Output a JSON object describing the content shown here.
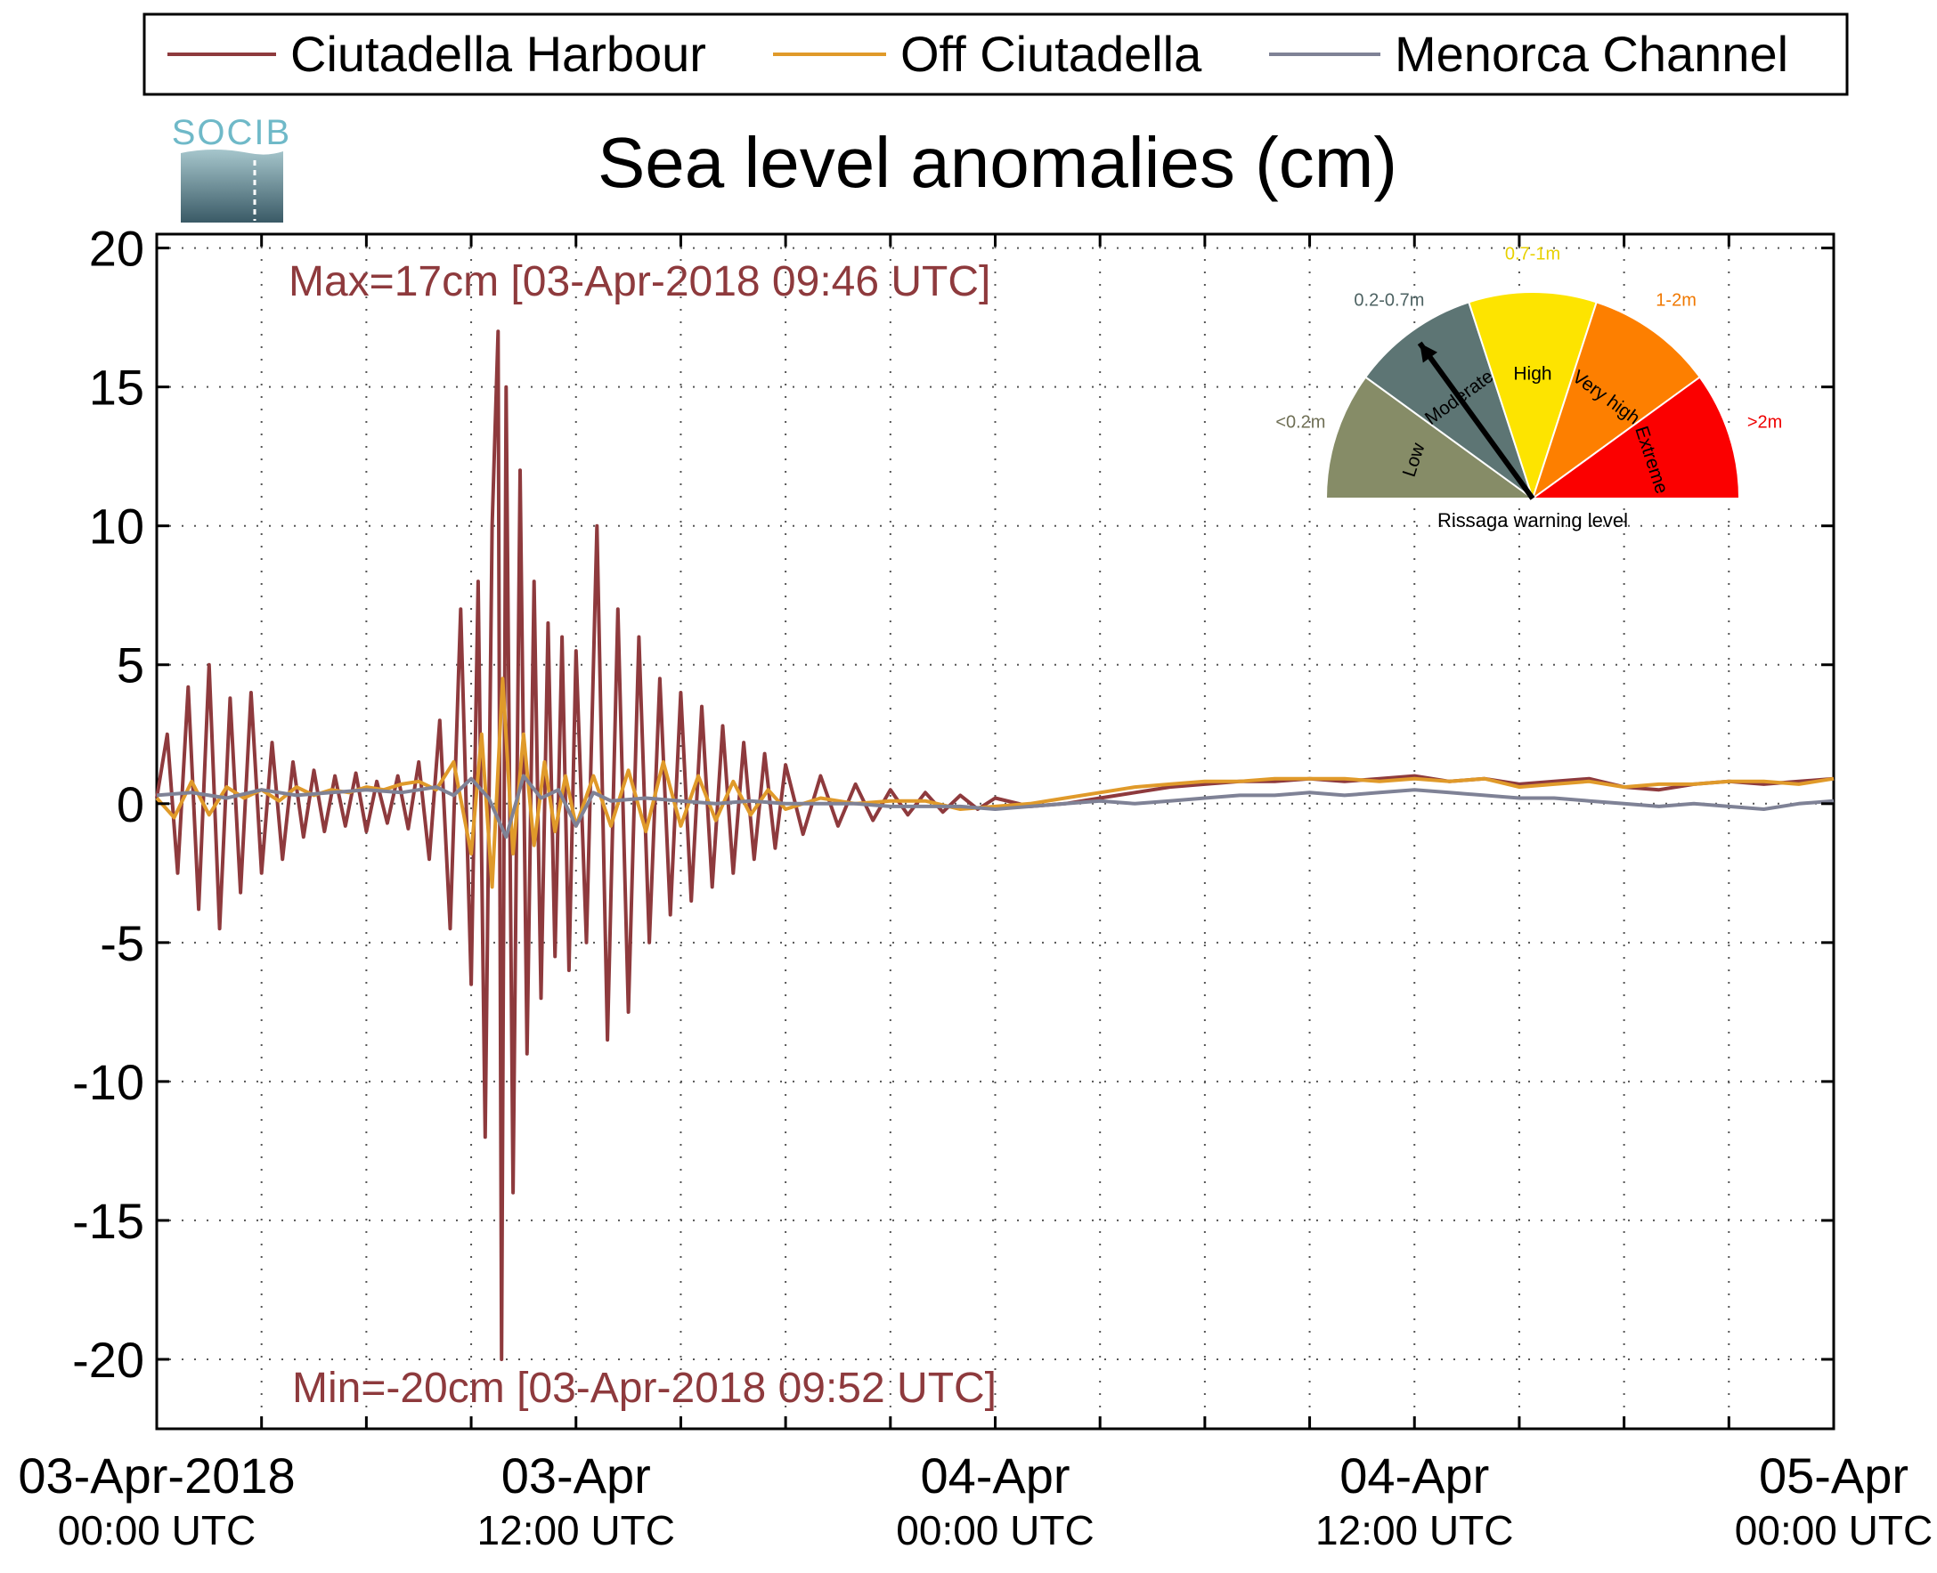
{
  "logo": {
    "text": "SOCIB"
  },
  "legend": {
    "items": [
      {
        "label": "Ciutadella Harbour",
        "color": "#8e3a3d"
      },
      {
        "label": "Off Ciutadella",
        "color": "#e09a2a"
      },
      {
        "label": "Menorca Channel",
        "color": "#7f8296"
      }
    ]
  },
  "gauge": {
    "caption": "Rissaga warning level",
    "sectors": [
      {
        "name": "Low",
        "range": "<0.2m",
        "color": "#868c67",
        "range_color": "#6f6f55"
      },
      {
        "name": "Moderate",
        "range": "0.2-0.7m",
        "color": "#5d7574",
        "range_color": "#4d6262"
      },
      {
        "name": "High",
        "range": "0.7-1m",
        "color": "#fde400",
        "range_color": "#e8d100"
      },
      {
        "name": "Very high",
        "range": "1-2m",
        "color": "#fd7f00",
        "range_color": "#f07800"
      },
      {
        "name": "Extreme",
        "range": ">2m",
        "color": "#fb0000",
        "range_color": "#ee0000"
      }
    ],
    "current_level": "Moderate"
  },
  "chart_data": {
    "type": "line",
    "title": "Sea level anomalies (cm)",
    "xlabel": "",
    "ylabel": "",
    "ylim": [
      -22.5,
      20.5
    ],
    "yticks": [
      20,
      15,
      10,
      5,
      0,
      -5,
      -10,
      -15,
      -20
    ],
    "xlim_hours": [
      0,
      48
    ],
    "x_minor_tick_hours": [
      0,
      3,
      6,
      9,
      12,
      15,
      18,
      21,
      24,
      27,
      30,
      33,
      36,
      39,
      42,
      45,
      48
    ],
    "xtick_labels": [
      {
        "hour": 0,
        "line1": "03-Apr-2018",
        "line2": "00:00 UTC"
      },
      {
        "hour": 12,
        "line1": "03-Apr",
        "line2": "12:00 UTC"
      },
      {
        "hour": 24,
        "line1": "04-Apr",
        "line2": "00:00 UTC"
      },
      {
        "hour": 36,
        "line1": "04-Apr",
        "line2": "12:00 UTC"
      },
      {
        "hour": 48,
        "line1": "05-Apr",
        "line2": "00:00 UTC"
      }
    ],
    "grid": true,
    "legend_position": "top",
    "annotations": {
      "max": {
        "text": "Max=17cm [03-Apr-2018 09:46 UTC]",
        "value": 17,
        "time": "03-Apr-2018 09:46 UTC"
      },
      "min": {
        "text": "Min=-20cm [03-Apr-2018 09:52 UTC]",
        "value": -20,
        "time": "03-Apr-2018 09:52 UTC"
      }
    },
    "series": [
      {
        "name": "Ciutadella Harbour",
        "x_hours": [
          0,
          0.3,
          0.6,
          0.9,
          1.2,
          1.5,
          1.8,
          2.1,
          2.4,
          2.7,
          3,
          3.3,
          3.6,
          3.9,
          4.2,
          4.5,
          4.8,
          5.1,
          5.4,
          5.7,
          6,
          6.3,
          6.6,
          6.9,
          7.2,
          7.5,
          7.8,
          8.1,
          8.4,
          8.7,
          9,
          9.2,
          9.4,
          9.6,
          9.77,
          9.87,
          10,
          10.2,
          10.4,
          10.6,
          10.8,
          11,
          11.2,
          11.4,
          11.6,
          11.8,
          12,
          12.3,
          12.6,
          12.9,
          13.2,
          13.5,
          13.8,
          14.1,
          14.4,
          14.7,
          15,
          15.3,
          15.6,
          15.9,
          16.2,
          16.5,
          16.8,
          17.1,
          17.4,
          17.7,
          18,
          18.5,
          19,
          19.5,
          20,
          20.5,
          21,
          21.5,
          22,
          22.5,
          23,
          23.5,
          24,
          25,
          26,
          27,
          28,
          29,
          30,
          31,
          32,
          33,
          34,
          35,
          36,
          37,
          38,
          39,
          40,
          41,
          42,
          43,
          44,
          45,
          46,
          47,
          48
        ],
        "y": [
          0.2,
          2.5,
          -2.5,
          4.2,
          -3.8,
          5.0,
          -4.5,
          3.8,
          -3.2,
          4.0,
          -2.5,
          2.2,
          -2.0,
          1.5,
          -1.2,
          1.2,
          -1.0,
          1.0,
          -0.8,
          1.1,
          -1.0,
          0.8,
          -0.7,
          1.0,
          -0.9,
          1.5,
          -2.0,
          3.0,
          -4.5,
          7.0,
          -6.5,
          8.0,
          -12.0,
          10.0,
          17.0,
          -20.0,
          15.0,
          -14.0,
          12.0,
          -9.0,
          8.0,
          -7.0,
          6.5,
          -5.5,
          6.0,
          -6.0,
          5.5,
          -5.0,
          10.0,
          -8.5,
          7.0,
          -7.5,
          6.0,
          -5.0,
          4.5,
          -4.0,
          4.0,
          -3.5,
          3.5,
          -3.0,
          2.8,
          -2.5,
          2.2,
          -2.0,
          1.8,
          -1.6,
          1.4,
          -1.1,
          1.0,
          -0.8,
          0.7,
          -0.6,
          0.5,
          -0.4,
          0.4,
          -0.3,
          0.3,
          -0.2,
          0.2,
          -0.1,
          0.0,
          0.2,
          0.4,
          0.6,
          0.7,
          0.8,
          0.8,
          0.9,
          0.8,
          0.9,
          1.0,
          0.8,
          0.9,
          0.7,
          0.8,
          0.9,
          0.6,
          0.5,
          0.7,
          0.8,
          0.7,
          0.8,
          0.9
        ]
      },
      {
        "name": "Off Ciutadella",
        "x_hours": [
          0,
          0.5,
          1,
          1.5,
          2,
          2.5,
          3,
          3.5,
          4,
          4.5,
          5,
          5.5,
          6,
          6.5,
          7,
          7.5,
          8,
          8.5,
          9,
          9.3,
          9.6,
          9.9,
          10.2,
          10.5,
          10.8,
          11.1,
          11.4,
          11.7,
          12,
          12.5,
          13,
          13.5,
          14,
          14.5,
          15,
          15.5,
          16,
          16.5,
          17,
          17.5,
          18,
          19,
          20,
          21,
          22,
          23,
          24,
          25,
          26,
          27,
          28,
          29,
          30,
          31,
          32,
          33,
          34,
          35,
          36,
          37,
          38,
          39,
          40,
          41,
          42,
          43,
          44,
          45,
          46,
          47,
          48
        ],
        "y": [
          0.2,
          -0.5,
          0.8,
          -0.4,
          0.6,
          0.2,
          0.5,
          0.1,
          0.6,
          0.3,
          0.5,
          0.4,
          0.6,
          0.5,
          0.7,
          0.8,
          0.5,
          1.5,
          -1.8,
          2.5,
          -3.0,
          4.5,
          -1.8,
          2.5,
          -1.5,
          1.5,
          -1.0,
          1.0,
          -0.8,
          1.0,
          -0.8,
          1.2,
          -1.0,
          1.5,
          -0.8,
          1.0,
          -0.6,
          0.8,
          -0.4,
          0.5,
          -0.2,
          0.2,
          0.0,
          0.1,
          0.1,
          -0.2,
          -0.1,
          0.0,
          0.2,
          0.4,
          0.6,
          0.7,
          0.8,
          0.8,
          0.9,
          0.9,
          0.9,
          0.8,
          0.9,
          0.8,
          0.9,
          0.6,
          0.7,
          0.8,
          0.6,
          0.7,
          0.7,
          0.8,
          0.8,
          0.7,
          0.9
        ]
      },
      {
        "name": "Menorca Channel",
        "x_hours": [
          0,
          1,
          2,
          3,
          4,
          5,
          6,
          7,
          8,
          8.5,
          9,
          9.5,
          10,
          10.5,
          11,
          11.5,
          12,
          12.5,
          13,
          14,
          15,
          16,
          17,
          18,
          19,
          20,
          21,
          22,
          23,
          24,
          25,
          26,
          27,
          28,
          29,
          30,
          31,
          32,
          33,
          34,
          35,
          36,
          37,
          38,
          39,
          40,
          41,
          42,
          43,
          44,
          45,
          46,
          47,
          48
        ],
        "y": [
          0.3,
          0.4,
          0.2,
          0.5,
          0.3,
          0.4,
          0.5,
          0.4,
          0.6,
          0.3,
          0.9,
          0.2,
          -1.2,
          1.0,
          0.2,
          0.5,
          -0.8,
          0.4,
          0.1,
          0.2,
          0.1,
          0.0,
          0.1,
          0.0,
          0.0,
          0.0,
          -0.1,
          -0.1,
          -0.1,
          -0.2,
          -0.1,
          0.0,
          0.1,
          0.0,
          0.1,
          0.2,
          0.3,
          0.3,
          0.4,
          0.3,
          0.4,
          0.5,
          0.4,
          0.3,
          0.2,
          0.2,
          0.1,
          0.0,
          -0.1,
          0.0,
          -0.1,
          -0.2,
          0.0,
          0.1
        ]
      }
    ]
  }
}
